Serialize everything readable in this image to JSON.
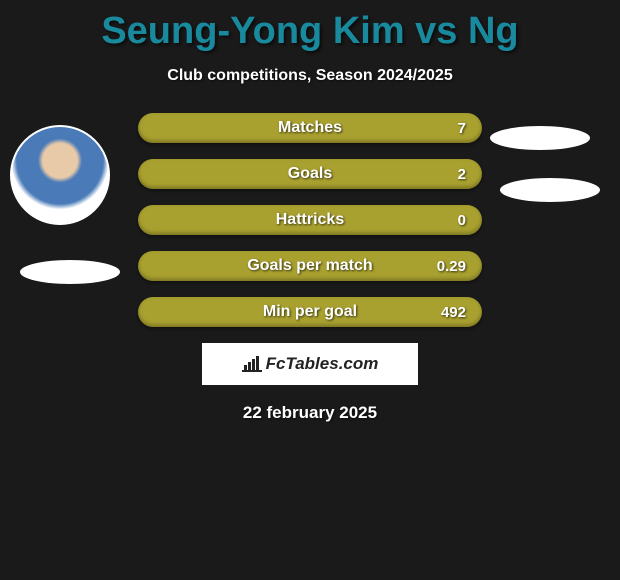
{
  "title": {
    "text": "Seung-Yong Kim vs Ng",
    "color": "#198a9e",
    "fontsize": 38
  },
  "subtitle": "Club competitions, Season 2024/2025",
  "date": "22 february 2025",
  "logo": "FcTables.com",
  "bar_color": "#a9a12f",
  "background_color": "#1a1a1a",
  "text_color": "#ffffff",
  "bars": [
    {
      "label": "Matches",
      "value": "7"
    },
    {
      "label": "Goals",
      "value": "2"
    },
    {
      "label": "Hattricks",
      "value": "0"
    },
    {
      "label": "Goals per match",
      "value": "0.29"
    },
    {
      "label": "Min per goal",
      "value": "492"
    }
  ],
  "player_left_has_photo": true,
  "ovals": {
    "fill": "#ffffff"
  }
}
